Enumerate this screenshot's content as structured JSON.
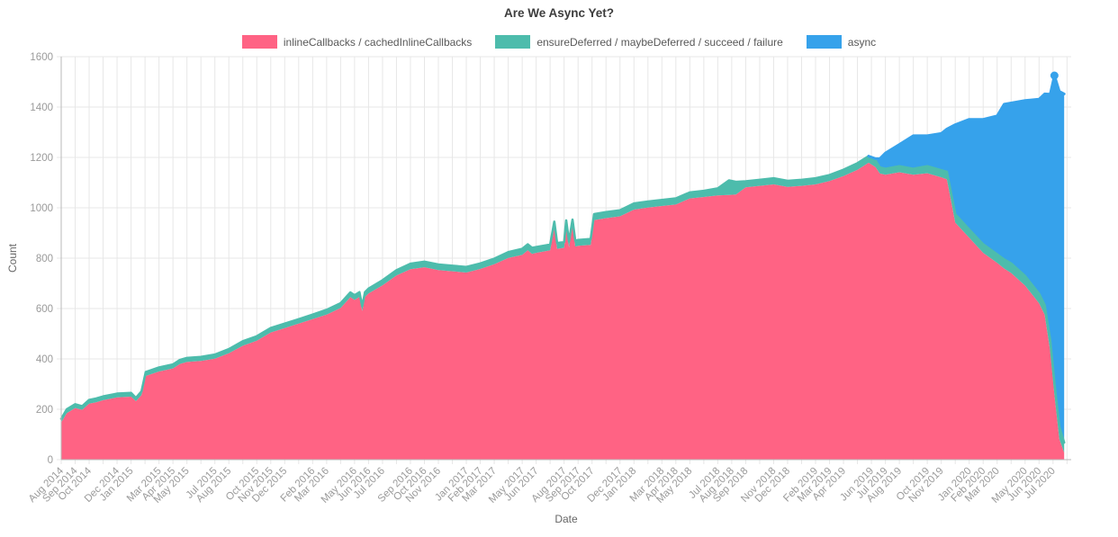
{
  "chart_data": {
    "type": "area",
    "stacked": true,
    "title": "Are We Async Yet?",
    "xlabel": "Date",
    "ylabel": "Count",
    "ylim": [
      0,
      1600
    ],
    "y_ticks": [
      0,
      200,
      400,
      600,
      800,
      1000,
      1200,
      1400,
      1600
    ],
    "x_domain": [
      0,
      72.3
    ],
    "x_unit": "months since Aug 2014",
    "grid": true,
    "legend_position": "top",
    "series": [
      {
        "name": "inlineCallbacks / cachedInlineCallbacks",
        "color": "#FF6384"
      },
      {
        "name": "ensureDeferred / maybeDeferred / succeed / failure",
        "color": "#4DBCAC"
      },
      {
        "name": "async",
        "color": "#36A2EB"
      }
    ],
    "points_format": "[month_index_from_Aug2014, inlineCallbacks, ensureDeferred, async] (band values, stacked)",
    "points": [
      [
        0,
        148,
        14,
        0
      ],
      [
        0.4,
        185,
        15,
        0
      ],
      [
        1,
        205,
        15,
        0
      ],
      [
        1.5,
        198,
        14,
        0
      ],
      [
        2,
        222,
        15,
        0
      ],
      [
        2.5,
        228,
        15,
        0
      ],
      [
        3,
        236,
        15,
        0
      ],
      [
        4,
        247,
        15,
        0
      ],
      [
        5,
        250,
        15,
        0
      ],
      [
        5.35,
        232,
        13,
        0
      ],
      [
        5.75,
        256,
        15,
        0
      ],
      [
        6.05,
        332,
        16,
        0
      ],
      [
        7,
        350,
        16,
        0
      ],
      [
        8,
        362,
        16,
        0
      ],
      [
        8.5,
        380,
        16,
        0
      ],
      [
        9,
        388,
        16,
        0
      ],
      [
        10,
        392,
        16,
        0
      ],
      [
        11,
        401,
        16,
        0
      ],
      [
        12,
        422,
        17,
        0
      ],
      [
        13,
        452,
        18,
        0
      ],
      [
        14,
        472,
        18,
        0
      ],
      [
        15,
        505,
        18,
        0
      ],
      [
        16,
        522,
        18,
        0
      ],
      [
        17,
        540,
        18,
        0
      ],
      [
        18,
        558,
        18,
        0
      ],
      [
        19,
        576,
        19,
        0
      ],
      [
        20,
        602,
        19,
        0
      ],
      [
        20.7,
        645,
        19,
        0
      ],
      [
        21,
        634,
        19,
        0
      ],
      [
        21.35,
        646,
        19,
        0
      ],
      [
        21.55,
        590,
        19,
        0
      ],
      [
        21.75,
        646,
        19,
        0
      ],
      [
        22,
        660,
        19,
        0
      ],
      [
        23,
        692,
        20,
        0
      ],
      [
        24,
        731,
        21,
        0
      ],
      [
        25,
        756,
        22,
        0
      ],
      [
        26,
        764,
        22,
        0
      ],
      [
        27,
        753,
        22,
        0
      ],
      [
        28,
        748,
        22,
        0
      ],
      [
        29,
        743,
        22,
        0
      ],
      [
        30,
        757,
        22,
        0
      ],
      [
        31,
        776,
        22,
        0
      ],
      [
        32,
        801,
        23,
        0
      ],
      [
        33,
        813,
        24,
        0
      ],
      [
        33.4,
        831,
        24,
        0
      ],
      [
        33.7,
        817,
        24,
        0
      ],
      [
        34,
        821,
        23,
        0
      ],
      [
        35,
        831,
        23,
        0
      ],
      [
        35.3,
        921,
        24,
        0
      ],
      [
        35.5,
        837,
        23,
        0
      ],
      [
        36,
        841,
        23,
        0
      ],
      [
        36.15,
        926,
        24,
        0
      ],
      [
        36.35,
        843,
        23,
        0
      ],
      [
        36.6,
        929,
        24,
        0
      ],
      [
        36.8,
        846,
        23,
        0
      ],
      [
        37,
        849,
        23,
        0
      ],
      [
        37.9,
        853,
        23,
        0
      ],
      [
        38.15,
        951,
        24,
        0
      ],
      [
        39,
        959,
        24,
        0
      ],
      [
        40,
        966,
        24,
        0
      ],
      [
        41,
        993,
        24,
        0
      ],
      [
        42,
        1001,
        24,
        0
      ],
      [
        43,
        1007,
        24,
        0
      ],
      [
        44,
        1013,
        24,
        0
      ],
      [
        45,
        1037,
        24,
        0
      ],
      [
        46,
        1043,
        24,
        0
      ],
      [
        47,
        1049,
        28,
        0
      ],
      [
        47.8,
        1051,
        58,
        0
      ],
      [
        48.3,
        1053,
        50,
        0
      ],
      [
        49,
        1081,
        24,
        0
      ],
      [
        50,
        1087,
        24,
        0
      ],
      [
        51,
        1093,
        24,
        0
      ],
      [
        52,
        1083,
        24,
        0
      ],
      [
        53,
        1087,
        24,
        0
      ],
      [
        54,
        1093,
        24,
        0
      ],
      [
        55,
        1106,
        24,
        0
      ],
      [
        56,
        1126,
        25,
        0
      ],
      [
        57,
        1151,
        26,
        0
      ],
      [
        57.8,
        1179,
        26,
        0
      ],
      [
        58.3,
        1161,
        26,
        8
      ],
      [
        58.6,
        1136,
        24,
        35
      ],
      [
        59,
        1131,
        24,
        62
      ],
      [
        60,
        1141,
        24,
        86
      ],
      [
        61,
        1131,
        24,
        131
      ],
      [
        62,
        1137,
        28,
        121
      ],
      [
        63,
        1121,
        28,
        146
      ],
      [
        63.4,
        1113,
        30,
        170
      ],
      [
        64,
        941,
        33,
        356
      ],
      [
        65,
        881,
        33,
        437
      ],
      [
        66,
        821,
        34,
        496
      ],
      [
        67,
        781,
        34,
        550
      ],
      [
        67.5,
        759,
        36,
        616
      ],
      [
        68,
        741,
        38,
        637
      ],
      [
        69,
        691,
        38,
        697
      ],
      [
        70,
        621,
        38,
        772
      ],
      [
        70.4,
        576,
        38,
        838
      ],
      [
        70.8,
        431,
        43,
        977
      ],
      [
        71.1,
        256,
        46,
        1223
      ],
      [
        71.45,
        82,
        48,
        1332
      ],
      [
        71.8,
        28,
        40,
        1384
      ]
    ],
    "end_marker": {
      "m": 71.1,
      "total": 1525
    },
    "x_tick_labels": [
      {
        "m": 0,
        "label": "Aug 2014"
      },
      {
        "m": 1,
        "label": "Sep 2014"
      },
      {
        "m": 2,
        "label": "Oct 2014"
      },
      {
        "m": 4,
        "label": "Dec 2014"
      },
      {
        "m": 5,
        "label": "Jan 2015"
      },
      {
        "m": 7,
        "label": "Mar 2015"
      },
      {
        "m": 8,
        "label": "Apr 2015"
      },
      {
        "m": 9,
        "label": "May 2015"
      },
      {
        "m": 11,
        "label": "Jul 2015"
      },
      {
        "m": 12,
        "label": "Aug 2015"
      },
      {
        "m": 14,
        "label": "Oct 2015"
      },
      {
        "m": 15,
        "label": "Nov 2015"
      },
      {
        "m": 16,
        "label": "Dec 2015"
      },
      {
        "m": 18,
        "label": "Feb 2016"
      },
      {
        "m": 19,
        "label": "Mar 2016"
      },
      {
        "m": 21,
        "label": "May 2016"
      },
      {
        "m": 22,
        "label": "Jun 2016"
      },
      {
        "m": 23,
        "label": "Jul 2016"
      },
      {
        "m": 25,
        "label": "Sep 2016"
      },
      {
        "m": 26,
        "label": "Oct 2016"
      },
      {
        "m": 27,
        "label": "Nov 2016"
      },
      {
        "m": 29,
        "label": "Jan 2017"
      },
      {
        "m": 30,
        "label": "Feb 2017"
      },
      {
        "m": 31,
        "label": "Mar 2017"
      },
      {
        "m": 33,
        "label": "May 2017"
      },
      {
        "m": 34,
        "label": "Jun 2017"
      },
      {
        "m": 36,
        "label": "Aug 2017"
      },
      {
        "m": 37,
        "label": "Sep 2017"
      },
      {
        "m": 38,
        "label": "Oct 2017"
      },
      {
        "m": 40,
        "label": "Dec 2017"
      },
      {
        "m": 41,
        "label": "Jan 2018"
      },
      {
        "m": 43,
        "label": "Mar 2018"
      },
      {
        "m": 44,
        "label": "Apr 2018"
      },
      {
        "m": 45,
        "label": "May 2018"
      },
      {
        "m": 47,
        "label": "Jul 2018"
      },
      {
        "m": 48,
        "label": "Aug 2018"
      },
      {
        "m": 49,
        "label": "Sep 2018"
      },
      {
        "m": 51,
        "label": "Nov 2018"
      },
      {
        "m": 52,
        "label": "Dec 2018"
      },
      {
        "m": 54,
        "label": "Feb 2019"
      },
      {
        "m": 55,
        "label": "Mar 2019"
      },
      {
        "m": 56,
        "label": "Apr 2019"
      },
      {
        "m": 58,
        "label": "Jun 2019"
      },
      {
        "m": 59,
        "label": "Jul 2019"
      },
      {
        "m": 60,
        "label": "Aug 2019"
      },
      {
        "m": 62,
        "label": "Oct 2019"
      },
      {
        "m": 63,
        "label": "Nov 2019"
      },
      {
        "m": 65,
        "label": "Jan 2020"
      },
      {
        "m": 66,
        "label": "Feb 2020"
      },
      {
        "m": 67,
        "label": "Mar 2020"
      },
      {
        "m": 69,
        "label": "May 2020"
      },
      {
        "m": 70,
        "label": "Jun 2020"
      },
      {
        "m": 71,
        "label": "Jul 2020"
      }
    ],
    "style": {
      "gridline_color": "#e7e7e7",
      "axis_color": "#b8b8b8",
      "tick_label_color": "#9a9a9a",
      "axis_title_color": "#666666",
      "title_color": "#3d3d3d"
    }
  }
}
